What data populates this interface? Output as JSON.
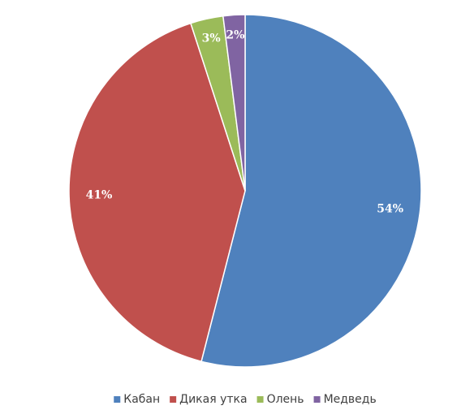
{
  "chart_data": {
    "type": "pie",
    "categories": [
      "Кабан",
      "Дикая утка",
      "Олень",
      "Медведь"
    ],
    "values": [
      54,
      41,
      3,
      2
    ],
    "value_labels": [
      "54%",
      "41%",
      "3%",
      "2%"
    ],
    "colors": [
      "#4f81bd",
      "#c0504d",
      "#9bbb59",
      "#8064a2"
    ],
    "legend": "bottom"
  }
}
